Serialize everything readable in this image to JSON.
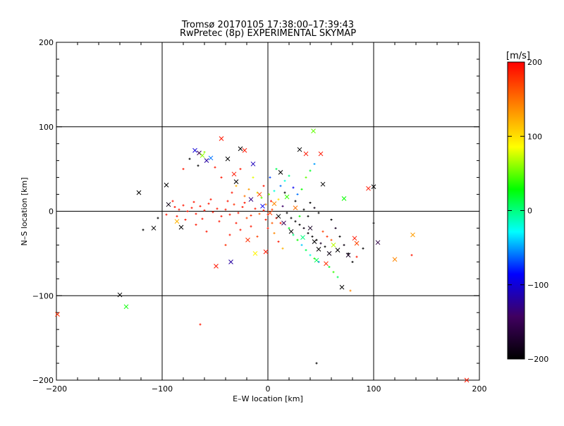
{
  "chart_data": {
    "type": "scatter",
    "title": "Tromsø 20170105 17:38:00–17:39:43",
    "subtitle": "RwPretec (8p) EXPERIMENTAL SKYMAP",
    "xlabel": "E–W location [km]",
    "ylabel": "N–S location [km]",
    "xlim": [
      -200,
      200
    ],
    "ylim": [
      -200,
      200
    ],
    "x_ticks": [
      -200,
      -100,
      0,
      100,
      200
    ],
    "y_ticks": [
      -200,
      -100,
      0,
      100,
      200
    ],
    "x_tick_labels": [
      "−200",
      "−100",
      "0",
      "100",
      "200"
    ],
    "y_tick_labels": [
      "−200",
      "−100",
      "0",
      "100",
      "200"
    ],
    "grid": true,
    "colorbar": {
      "label": "[m/s]",
      "range": [
        -200,
        200
      ],
      "ticks": [
        200,
        100,
        0,
        -100,
        -200
      ],
      "tick_labels": [
        "200",
        "100",
        "0",
        "−100",
        "−200"
      ],
      "stops": [
        "#000000",
        "#400060",
        "#0000ff",
        "#00ffff",
        "#00ff00",
        "#ffff00",
        "#ff8000",
        "#ff0000"
      ]
    },
    "markers_x": [
      {
        "x": -199,
        "y": -122,
        "v": 180
      },
      {
        "x": -140,
        "y": -99,
        "v": -200
      },
      {
        "x": -134,
        "y": -113,
        "v": 30
      },
      {
        "x": -122,
        "y": 22,
        "v": -200
      },
      {
        "x": -108,
        "y": -20,
        "v": -200
      },
      {
        "x": -96,
        "y": 31,
        "v": -200
      },
      {
        "x": -94,
        "y": 8,
        "v": -190
      },
      {
        "x": -86,
        "y": -12,
        "v": 120
      },
      {
        "x": -82,
        "y": -19,
        "v": -200
      },
      {
        "x": -69,
        "y": 72,
        "v": -100
      },
      {
        "x": -65,
        "y": 69,
        "v": -150
      },
      {
        "x": -62,
        "y": 66,
        "v": 60
      },
      {
        "x": -58,
        "y": 60,
        "v": -120
      },
      {
        "x": -54,
        "y": 63,
        "v": -60
      },
      {
        "x": -49,
        "y": -65,
        "v": 190
      },
      {
        "x": -44,
        "y": 86,
        "v": 190
      },
      {
        "x": -38,
        "y": 62,
        "v": -200
      },
      {
        "x": -35,
        "y": -60,
        "v": -120
      },
      {
        "x": -32,
        "y": 44,
        "v": 190
      },
      {
        "x": -30,
        "y": 35,
        "v": -200
      },
      {
        "x": -26,
        "y": 74,
        "v": -200
      },
      {
        "x": -22,
        "y": 72,
        "v": 190
      },
      {
        "x": -19,
        "y": -34,
        "v": 180
      },
      {
        "x": -16,
        "y": 14,
        "v": -130
      },
      {
        "x": -14,
        "y": 56,
        "v": -110
      },
      {
        "x": -12,
        "y": -50,
        "v": 90
      },
      {
        "x": -8,
        "y": 20,
        "v": 170
      },
      {
        "x": -5,
        "y": 6,
        "v": -90
      },
      {
        "x": -2,
        "y": -48,
        "v": 190
      },
      {
        "x": 2,
        "y": -2,
        "v": 170
      },
      {
        "x": 6,
        "y": 9,
        "v": 140
      },
      {
        "x": 10,
        "y": -6,
        "v": -200
      },
      {
        "x": 12,
        "y": 46,
        "v": -200
      },
      {
        "x": 15,
        "y": -14,
        "v": -150
      },
      {
        "x": 18,
        "y": 17,
        "v": 40
      },
      {
        "x": 22,
        "y": -24,
        "v": -200
      },
      {
        "x": 26,
        "y": 4,
        "v": 150
      },
      {
        "x": 30,
        "y": 73,
        "v": -200
      },
      {
        "x": 33,
        "y": -31,
        "v": 0
      },
      {
        "x": 36,
        "y": 68,
        "v": 190
      },
      {
        "x": 40,
        "y": -20,
        "v": -180
      },
      {
        "x": 43,
        "y": 95,
        "v": 50
      },
      {
        "x": 44,
        "y": -36,
        "v": -200
      },
      {
        "x": 46,
        "y": -58,
        "v": 10
      },
      {
        "x": 48,
        "y": -45,
        "v": -200
      },
      {
        "x": 50,
        "y": 68,
        "v": 190
      },
      {
        "x": 52,
        "y": 32,
        "v": -200
      },
      {
        "x": 55,
        "y": -62,
        "v": 180
      },
      {
        "x": 58,
        "y": -50,
        "v": -190
      },
      {
        "x": 62,
        "y": -40,
        "v": 70
      },
      {
        "x": 66,
        "y": -46,
        "v": -200
      },
      {
        "x": 70,
        "y": -90,
        "v": -200
      },
      {
        "x": 72,
        "y": 15,
        "v": 30
      },
      {
        "x": 76,
        "y": -52,
        "v": -180
      },
      {
        "x": 82,
        "y": -32,
        "v": 190
      },
      {
        "x": 84,
        "y": -38,
        "v": 170
      },
      {
        "x": 95,
        "y": 27,
        "v": 190
      },
      {
        "x": 100,
        "y": 29,
        "v": -200
      },
      {
        "x": 104,
        "y": -37,
        "v": -160
      },
      {
        "x": 120,
        "y": -57,
        "v": 140
      },
      {
        "x": 137,
        "y": -28,
        "v": 130
      },
      {
        "x": 188,
        "y": -200,
        "v": 190
      }
    ],
    "points": [
      {
        "x": -88,
        "y": 5,
        "v": 190
      },
      {
        "x": -84,
        "y": 2,
        "v": 190
      },
      {
        "x": -80,
        "y": 7,
        "v": 190
      },
      {
        "x": -76,
        "y": 0,
        "v": 190
      },
      {
        "x": -72,
        "y": 4,
        "v": 190
      },
      {
        "x": -68,
        "y": -3,
        "v": 190
      },
      {
        "x": -64,
        "y": 6,
        "v": 190
      },
      {
        "x": -60,
        "y": 1,
        "v": 190
      },
      {
        "x": -56,
        "y": 9,
        "v": 190
      },
      {
        "x": -52,
        "y": -1,
        "v": 190
      },
      {
        "x": -48,
        "y": 3,
        "v": 190
      },
      {
        "x": -44,
        "y": -6,
        "v": 190
      },
      {
        "x": -40,
        "y": 2,
        "v": 190
      },
      {
        "x": -36,
        "y": -4,
        "v": 190
      },
      {
        "x": -32,
        "y": 8,
        "v": 180
      },
      {
        "x": -28,
        "y": -2,
        "v": 190
      },
      {
        "x": -24,
        "y": 5,
        "v": 190
      },
      {
        "x": -20,
        "y": -8,
        "v": 170
      },
      {
        "x": -86,
        "y": -6,
        "v": 190
      },
      {
        "x": -78,
        "y": -10,
        "v": 190
      },
      {
        "x": -70,
        "y": 11,
        "v": 190
      },
      {
        "x": -62,
        "y": -9,
        "v": 190
      },
      {
        "x": -54,
        "y": 14,
        "v": 190
      },
      {
        "x": -46,
        "y": -12,
        "v": 190
      },
      {
        "x": -38,
        "y": 12,
        "v": 190
      },
      {
        "x": -30,
        "y": -14,
        "v": 190
      },
      {
        "x": -22,
        "y": 10,
        "v": 190
      },
      {
        "x": -16,
        "y": -5,
        "v": 180
      },
      {
        "x": -12,
        "y": 3,
        "v": 190
      },
      {
        "x": -8,
        "y": -3,
        "v": 160
      },
      {
        "x": -4,
        "y": 1,
        "v": 190
      },
      {
        "x": 0,
        "y": -4,
        "v": 190
      },
      {
        "x": 4,
        "y": 2,
        "v": 170
      },
      {
        "x": 8,
        "y": -8,
        "v": 190
      },
      {
        "x": -2,
        "y": 8,
        "v": 140
      },
      {
        "x": 3,
        "y": 12,
        "v": 190
      },
      {
        "x": -6,
        "y": 16,
        "v": 50
      },
      {
        "x": 1,
        "y": 20,
        "v": 60
      },
      {
        "x": 6,
        "y": 24,
        "v": -20
      },
      {
        "x": -10,
        "y": 22,
        "v": 80
      },
      {
        "x": 10,
        "y": 14,
        "v": 100
      },
      {
        "x": 14,
        "y": 6,
        "v": -140
      },
      {
        "x": 18,
        "y": -2,
        "v": -200
      },
      {
        "x": 22,
        "y": -8,
        "v": -200
      },
      {
        "x": 26,
        "y": -12,
        "v": -200
      },
      {
        "x": 30,
        "y": -16,
        "v": -200
      },
      {
        "x": 34,
        "y": -20,
        "v": -190
      },
      {
        "x": 38,
        "y": -26,
        "v": -200
      },
      {
        "x": 42,
        "y": -30,
        "v": -200
      },
      {
        "x": 46,
        "y": -34,
        "v": -200
      },
      {
        "x": 50,
        "y": -38,
        "v": -180
      },
      {
        "x": 54,
        "y": -42,
        "v": -200
      },
      {
        "x": 20,
        "y": -20,
        "v": 20
      },
      {
        "x": 24,
        "y": -28,
        "v": 0
      },
      {
        "x": 28,
        "y": -34,
        "v": 30
      },
      {
        "x": 32,
        "y": -40,
        "v": -40
      },
      {
        "x": 36,
        "y": -46,
        "v": 10
      },
      {
        "x": 40,
        "y": -52,
        "v": -20
      },
      {
        "x": 44,
        "y": -56,
        "v": 40
      },
      {
        "x": 48,
        "y": -60,
        "v": -60
      },
      {
        "x": 12,
        "y": 30,
        "v": -60
      },
      {
        "x": 16,
        "y": 36,
        "v": -20
      },
      {
        "x": 20,
        "y": 42,
        "v": 0
      },
      {
        "x": 24,
        "y": 28,
        "v": -90
      },
      {
        "x": 28,
        "y": 20,
        "v": -60
      },
      {
        "x": 32,
        "y": 26,
        "v": 30
      },
      {
        "x": -14,
        "y": 40,
        "v": 80
      },
      {
        "x": -18,
        "y": 26,
        "v": 130
      },
      {
        "x": -22,
        "y": 18,
        "v": 150
      },
      {
        "x": -26,
        "y": 50,
        "v": 190
      },
      {
        "x": -30,
        "y": 30,
        "v": 120
      },
      {
        "x": -34,
        "y": 22,
        "v": 190
      },
      {
        "x": -60,
        "y": 70,
        "v": 60
      },
      {
        "x": -50,
        "y": 52,
        "v": 190
      },
      {
        "x": -44,
        "y": 40,
        "v": 190
      },
      {
        "x": -66,
        "y": 54,
        "v": -200
      },
      {
        "x": -74,
        "y": 62,
        "v": -200
      },
      {
        "x": -80,
        "y": 50,
        "v": 190
      },
      {
        "x": 60,
        "y": -10,
        "v": -200
      },
      {
        "x": 64,
        "y": -20,
        "v": -180
      },
      {
        "x": 68,
        "y": -30,
        "v": -200
      },
      {
        "x": 72,
        "y": -40,
        "v": -190
      },
      {
        "x": 76,
        "y": -50,
        "v": -200
      },
      {
        "x": 80,
        "y": -60,
        "v": -200
      },
      {
        "x": 58,
        "y": -66,
        "v": 20
      },
      {
        "x": 62,
        "y": -72,
        "v": 40
      },
      {
        "x": 66,
        "y": -78,
        "v": 10
      },
      {
        "x": 52,
        "y": -24,
        "v": 170
      },
      {
        "x": 56,
        "y": -30,
        "v": 180
      },
      {
        "x": 60,
        "y": -34,
        "v": 160
      },
      {
        "x": 40,
        "y": 10,
        "v": -200
      },
      {
        "x": 44,
        "y": 4,
        "v": -190
      },
      {
        "x": 48,
        "y": -2,
        "v": -200
      },
      {
        "x": 36,
        "y": 40,
        "v": 50
      },
      {
        "x": 40,
        "y": 48,
        "v": 20
      },
      {
        "x": 44,
        "y": 56,
        "v": -50
      },
      {
        "x": -36,
        "y": -28,
        "v": 190
      },
      {
        "x": -26,
        "y": -22,
        "v": 190
      },
      {
        "x": -16,
        "y": -18,
        "v": 190
      },
      {
        "x": -40,
        "y": -40,
        "v": 180
      },
      {
        "x": -10,
        "y": -30,
        "v": 170
      },
      {
        "x": 0,
        "y": -20,
        "v": 190
      },
      {
        "x": 6,
        "y": -26,
        "v": 140
      },
      {
        "x": 10,
        "y": -36,
        "v": 190
      },
      {
        "x": 14,
        "y": -44,
        "v": 120
      },
      {
        "x": -58,
        "y": -24,
        "v": 190
      },
      {
        "x": -68,
        "y": -16,
        "v": 190
      },
      {
        "x": -90,
        "y": 12,
        "v": 190
      },
      {
        "x": -96,
        "y": -4,
        "v": 190
      },
      {
        "x": -104,
        "y": -8,
        "v": -200
      },
      {
        "x": -118,
        "y": -22,
        "v": -200
      },
      {
        "x": 84,
        "y": -54,
        "v": 190
      },
      {
        "x": 90,
        "y": -44,
        "v": -200
      },
      {
        "x": 100,
        "y": -14,
        "v": -200
      },
      {
        "x": 78,
        "y": -94,
        "v": 140
      },
      {
        "x": 136,
        "y": -52,
        "v": 190
      },
      {
        "x": 46,
        "y": -180,
        "v": -200
      },
      {
        "x": -64,
        "y": -134,
        "v": 190
      },
      {
        "x": 2,
        "y": 40,
        "v": -70
      },
      {
        "x": 8,
        "y": 50,
        "v": 10
      },
      {
        "x": -4,
        "y": 30,
        "v": 190
      },
      {
        "x": 16,
        "y": 22,
        "v": -200
      },
      {
        "x": 26,
        "y": 12,
        "v": -200
      },
      {
        "x": 34,
        "y": 2,
        "v": -200
      },
      {
        "x": 38,
        "y": -6,
        "v": -200
      },
      {
        "x": 30,
        "y": -6,
        "v": 30
      },
      {
        "x": 12,
        "y": -14,
        "v": 190
      },
      {
        "x": -2,
        "y": -10,
        "v": 190
      },
      {
        "x": 4,
        "y": -14,
        "v": 160
      }
    ]
  }
}
